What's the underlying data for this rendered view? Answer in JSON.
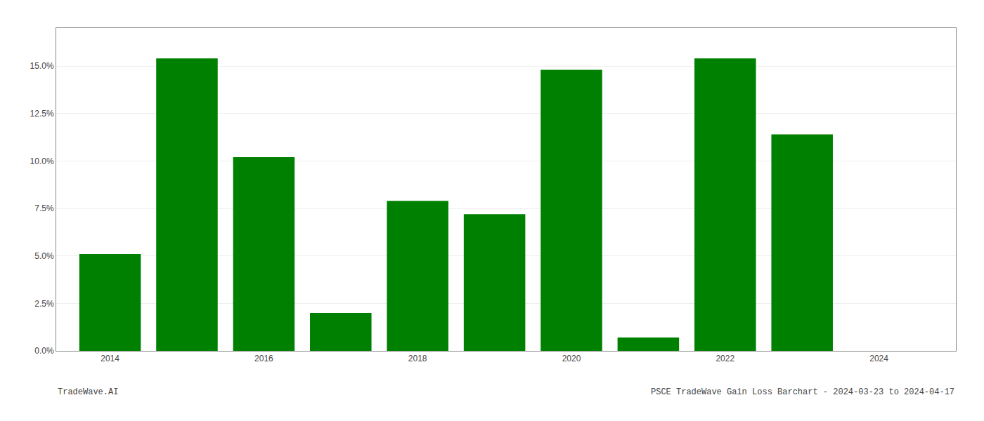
{
  "chart_data": {
    "type": "bar",
    "x": [
      2014,
      2015,
      2016,
      2017,
      2018,
      2019,
      2020,
      2021,
      2022,
      2023,
      2024
    ],
    "values": [
      0.051,
      0.154,
      0.102,
      0.02,
      0.079,
      0.072,
      0.148,
      0.007,
      0.154,
      0.114,
      0.0
    ],
    "color": "#008000",
    "xlim": [
      2013.3,
      2025.0
    ],
    "xticks": [
      2014,
      2016,
      2018,
      2020,
      2022,
      2024
    ],
    "ylim": [
      0,
      0.17
    ],
    "yticks": [
      {
        "value": 0.0,
        "label": "0.0%"
      },
      {
        "value": 0.025,
        "label": "2.5%"
      },
      {
        "value": 0.05,
        "label": "5.0%"
      },
      {
        "value": 0.075,
        "label": "7.5%"
      },
      {
        "value": 0.1,
        "label": "10.0%"
      },
      {
        "value": 0.125,
        "label": "12.5%"
      },
      {
        "value": 0.15,
        "label": "15.0%"
      }
    ],
    "grid": true,
    "annotations": [
      "TradeWave.AI",
      "PSCE TradeWave Gain Loss Barchart - 2024-03-23 to 2024-04-17"
    ]
  }
}
